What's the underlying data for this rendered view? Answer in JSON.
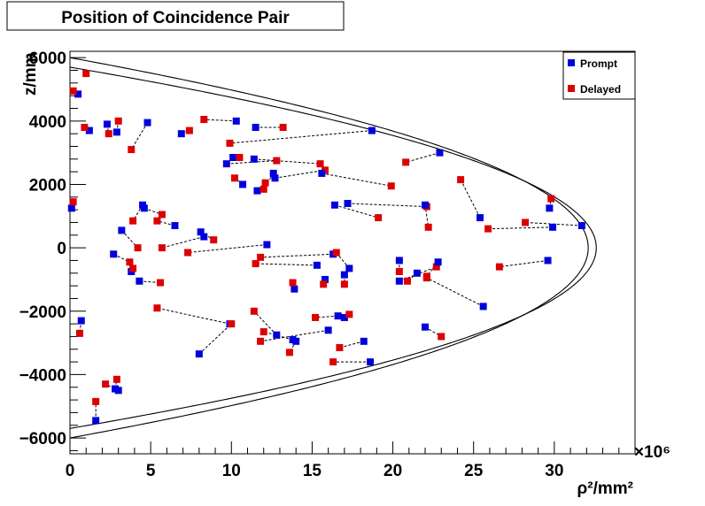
{
  "chart_data": {
    "type": "scatter",
    "title": "Position of Coincidence Pair",
    "xlabel": "ρ²/mm²",
    "ylabel": "z/mm",
    "x_exponent": "×10⁶",
    "xlim": [
      0,
      35
    ],
    "ylim": [
      -6500,
      6200
    ],
    "x_ticks": [
      0,
      5,
      10,
      15,
      20,
      25,
      30
    ],
    "x_tick_labels": [
      "0",
      "5",
      "10",
      "15",
      "20",
      "25",
      "30"
    ],
    "y_ticks": [
      -6000,
      -4000,
      -2000,
      0,
      2000,
      4000,
      6000
    ],
    "y_tick_labels": [
      "−6000",
      "−4000",
      "−2000",
      "0",
      "2000",
      "4000",
      "6000"
    ],
    "legend": {
      "position": "top-right"
    },
    "series": [
      {
        "name": "Prompt",
        "color": "#0000dd"
      },
      {
        "name": "Delayed",
        "color": "#dd0000"
      }
    ],
    "boundary_curves": [
      {
        "z_peak": 6000,
        "rho2_max": 32.1
      },
      {
        "z_peak": 5700,
        "rho2_max": 32.6
      }
    ],
    "pairs": [
      {
        "prompt": [
          0.5,
          4850
        ],
        "delayed": [
          0.2,
          4950
        ]
      },
      {
        "prompt": [
          1.2,
          3700
        ],
        "delayed": [
          0.9,
          3800
        ]
      },
      {
        "prompt": [
          2.3,
          3900
        ],
        "delayed": [
          2.4,
          3600
        ]
      },
      {
        "prompt": [
          2.9,
          3650
        ],
        "delayed": [
          3.0,
          4000
        ]
      },
      {
        "prompt": [
          4.8,
          3950
        ],
        "delayed": [
          3.8,
          3100
        ]
      },
      {
        "prompt": [
          6.9,
          3600
        ],
        "delayed": [
          7.4,
          3700
        ]
      },
      {
        "prompt": [
          10.3,
          4000
        ],
        "delayed": [
          8.3,
          4050
        ]
      },
      {
        "prompt": [
          11.5,
          3800
        ],
        "delayed": [
          13.2,
          3800
        ]
      },
      {
        "prompt": [
          18.7,
          3700
        ],
        "delayed": [
          9.9,
          3300
        ]
      },
      {
        "prompt": [
          9.7,
          2650
        ],
        "delayed": [
          12.8,
          2750
        ]
      },
      {
        "prompt": [
          10.1,
          2850
        ],
        "delayed": [
          10.5,
          2850
        ]
      },
      {
        "prompt": [
          11.4,
          2800
        ],
        "delayed": [
          15.5,
          2650
        ]
      },
      {
        "prompt": [
          22.9,
          3000
        ],
        "delayed": [
          20.8,
          2700
        ]
      },
      {
        "prompt": [
          10.7,
          2000
        ],
        "delayed": [
          10.2,
          2200
        ]
      },
      {
        "prompt": [
          11.6,
          1800
        ],
        "delayed": [
          12.1,
          2050
        ]
      },
      {
        "prompt": [
          12.6,
          2350
        ],
        "delayed": [
          12.0,
          1850
        ]
      },
      {
        "prompt": [
          12.7,
          2200
        ],
        "delayed": [
          15.8,
          2450
        ]
      },
      {
        "prompt": [
          15.6,
          2350
        ],
        "delayed": [
          19.9,
          1950
        ]
      },
      {
        "prompt": [
          16.4,
          1350
        ],
        "delayed": [
          19.1,
          950
        ]
      },
      {
        "prompt": [
          17.2,
          1400
        ],
        "delayed": [
          22.1,
          1300
        ]
      },
      {
        "prompt": [
          25.4,
          950
        ],
        "delayed": [
          24.2,
          2150
        ]
      },
      {
        "prompt": [
          22.0,
          1350
        ],
        "delayed": [
          22.2,
          650
        ]
      },
      {
        "prompt": [
          29.9,
          650
        ],
        "delayed": [
          25.9,
          600
        ]
      },
      {
        "prompt": [
          31.7,
          700
        ],
        "delayed": [
          28.2,
          800
        ]
      },
      {
        "prompt": [
          29.7,
          1250
        ],
        "delayed": [
          29.8,
          1550
        ]
      },
      {
        "prompt": [
          0.1,
          1250
        ],
        "delayed": [
          0.2,
          1450
        ]
      },
      {
        "prompt": [
          4.5,
          1350
        ],
        "delayed": [
          3.9,
          850
        ]
      },
      {
        "prompt": [
          3.2,
          550
        ],
        "delayed": [
          4.2,
          0
        ]
      },
      {
        "prompt": [
          4.6,
          1250
        ],
        "delayed": [
          5.7,
          1050
        ]
      },
      {
        "prompt": [
          6.5,
          700
        ],
        "delayed": [
          5.4,
          850
        ]
      },
      {
        "prompt": [
          8.1,
          500
        ],
        "delayed": [
          8.9,
          250
        ]
      },
      {
        "prompt": [
          8.3,
          350
        ],
        "delayed": [
          5.7,
          0
        ]
      },
      {
        "prompt": [
          12.2,
          100
        ],
        "delayed": [
          7.3,
          -150
        ]
      },
      {
        "prompt": [
          2.7,
          -200
        ],
        "delayed": [
          3.7,
          -450
        ]
      },
      {
        "prompt": [
          3.8,
          -750
        ],
        "delayed": [
          3.9,
          -650
        ]
      },
      {
        "prompt": [
          4.3,
          -1050
        ],
        "delayed": [
          5.6,
          -1100
        ]
      },
      {
        "prompt": [
          15.3,
          -550
        ],
        "delayed": [
          11.5,
          -500
        ]
      },
      {
        "prompt": [
          16.3,
          -200
        ],
        "delayed": [
          11.8,
          -300
        ]
      },
      {
        "prompt": [
          13.9,
          -1300
        ],
        "delayed": [
          13.8,
          -1100
        ]
      },
      {
        "prompt": [
          17.3,
          -650
        ],
        "delayed": [
          16.5,
          -150
        ]
      },
      {
        "prompt": [
          15.8,
          -1000
        ],
        "delayed": [
          15.7,
          -1150
        ]
      },
      {
        "prompt": [
          17.0,
          -850
        ],
        "delayed": [
          17.0,
          -1150
        ]
      },
      {
        "prompt": [
          20.4,
          -400
        ],
        "delayed": [
          20.4,
          -750
        ]
      },
      {
        "prompt": [
          21.5,
          -800
        ],
        "delayed": [
          20.9,
          -1050
        ]
      },
      {
        "prompt": [
          20.4,
          -1050
        ],
        "delayed": [
          22.7,
          -600
        ]
      },
      {
        "prompt": [
          22.8,
          -450
        ],
        "delayed": [
          22.1,
          -900
        ]
      },
      {
        "prompt": [
          29.6,
          -400
        ],
        "delayed": [
          26.6,
          -600
        ]
      },
      {
        "prompt": [
          25.6,
          -1850
        ],
        "delayed": [
          22.1,
          -950
        ]
      },
      {
        "prompt": [
          0.7,
          -2300
        ],
        "delayed": [
          0.6,
          -2700
        ]
      },
      {
        "prompt": [
          9.9,
          -2400
        ],
        "delayed": [
          5.4,
          -1900
        ]
      },
      {
        "prompt": [
          8.0,
          -3350
        ],
        "delayed": [
          10.0,
          -2400
        ]
      },
      {
        "prompt": [
          12.8,
          -2750
        ],
        "delayed": [
          11.4,
          -2000
        ]
      },
      {
        "prompt": [
          16.6,
          -2150
        ],
        "delayed": [
          15.2,
          -2200
        ]
      },
      {
        "prompt": [
          17.0,
          -2200
        ],
        "delayed": [
          17.3,
          -2100
        ]
      },
      {
        "prompt": [
          16.0,
          -2600
        ],
        "delayed": [
          11.8,
          -2950
        ]
      },
      {
        "prompt": [
          13.8,
          -2900
        ],
        "delayed": [
          12.0,
          -2650
        ]
      },
      {
        "prompt": [
          14.0,
          -2950
        ],
        "delayed": [
          13.6,
          -3300
        ]
      },
      {
        "prompt": [
          18.2,
          -2950
        ],
        "delayed": [
          16.7,
          -3150
        ]
      },
      {
        "prompt": [
          18.6,
          -3600
        ],
        "delayed": [
          16.3,
          -3600
        ]
      },
      {
        "prompt": [
          22.0,
          -2500
        ],
        "delayed": [
          23.0,
          -2800
        ]
      },
      {
        "prompt": [
          2.8,
          -4450
        ],
        "delayed": [
          2.9,
          -4150
        ]
      },
      {
        "prompt": [
          3.0,
          -4500
        ],
        "delayed": [
          2.2,
          -4300
        ]
      },
      {
        "prompt": [
          1.6,
          -5450
        ],
        "delayed": [
          1.6,
          -4850
        ]
      }
    ],
    "unpaired": [
      {
        "series": "Delayed",
        "point": [
          1.0,
          5500
        ]
      }
    ]
  }
}
